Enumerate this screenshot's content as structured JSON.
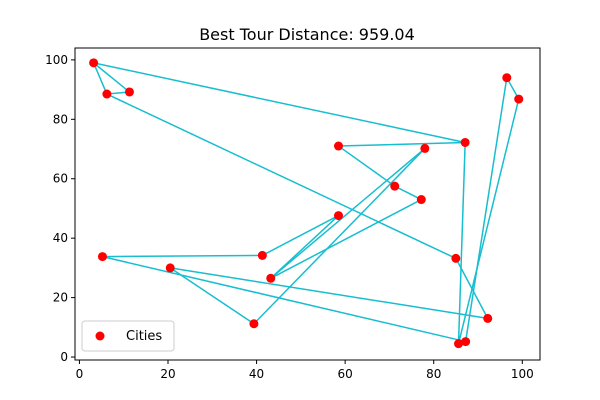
{
  "chart_data": {
    "type": "scatter",
    "title": "Best Tour Distance: 959.04",
    "xlim": [
      -1,
      104
    ],
    "ylim": [
      -1,
      104
    ],
    "xticks": [
      0,
      20,
      40,
      60,
      80,
      100
    ],
    "yticks": [
      0,
      20,
      40,
      60,
      80,
      100
    ],
    "grid": false,
    "legend": {
      "position": "bottom-left",
      "entries": [
        "Cities"
      ]
    },
    "series": [
      {
        "name": "Cities",
        "kind": "points",
        "color": "#ff0000",
        "x": [
          3.2,
          11.3,
          6.2,
          58.5,
          71.2,
          77.2,
          85.0,
          87.1,
          96.5,
          99.2,
          87.2,
          85.6,
          92.2,
          39.4,
          20.5,
          5.2,
          41.3,
          58.5,
          78.0,
          43.2
        ],
        "y": [
          99.0,
          89.2,
          88.5,
          71.0,
          57.5,
          53.0,
          33.2,
          72.2,
          94.0,
          86.8,
          5.2,
          4.5,
          13.0,
          11.2,
          30.0,
          33.8,
          34.2,
          47.6,
          70.2,
          26.5
        ]
      },
      {
        "kind": "tour",
        "color": "#17becf",
        "order": [
          0,
          2,
          1,
          0,
          7,
          11,
          9,
          8,
          10,
          15,
          16,
          17,
          19,
          18,
          13,
          14,
          12,
          6,
          2
        ]
      },
      {
        "kind": "tour",
        "color": "#17becf",
        "order": [
          19,
          5,
          4,
          3,
          7
        ]
      }
    ]
  }
}
